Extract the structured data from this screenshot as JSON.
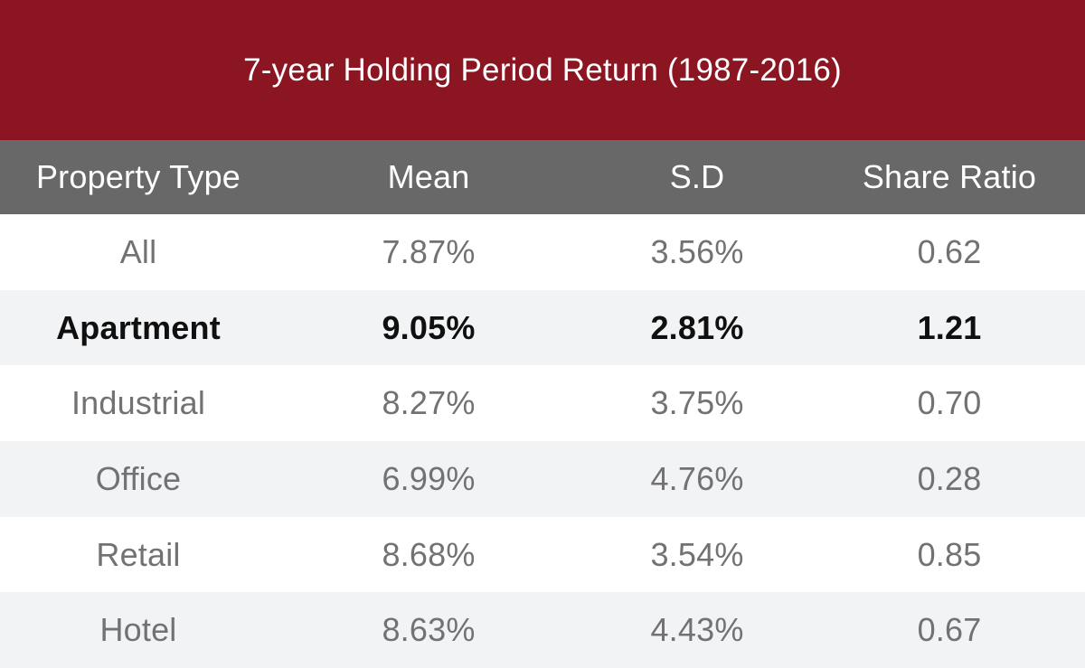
{
  "colors": {
    "banner-red": "#8B1622",
    "header-gray": "#686868",
    "stripe-gray": "#F2F3F4",
    "row-white": "#FFFFFF",
    "data-text": "#727275",
    "highlight-text": "#101010",
    "header-text": "#FFFFFF"
  },
  "chart_data": {
    "type": "table",
    "title": "7-year Holding Period Return (1987-2016)",
    "columns": [
      "Property Type",
      "Mean",
      "S.D",
      "Share Ratio"
    ],
    "rows": [
      [
        "All",
        "7.87%",
        "3.56%",
        "0.62"
      ],
      [
        "Apartment",
        "9.05%",
        "2.81%",
        "1.21"
      ],
      [
        "Industrial",
        "8.27%",
        "3.75%",
        "0.70"
      ],
      [
        "Office",
        "6.99%",
        "4.76%",
        "0.28"
      ],
      [
        "Retail",
        "8.68%",
        "3.54%",
        "0.85"
      ],
      [
        "Hotel",
        "8.63%",
        "4.43%",
        "0.67"
      ]
    ],
    "highlighted_row": "Apartment"
  }
}
